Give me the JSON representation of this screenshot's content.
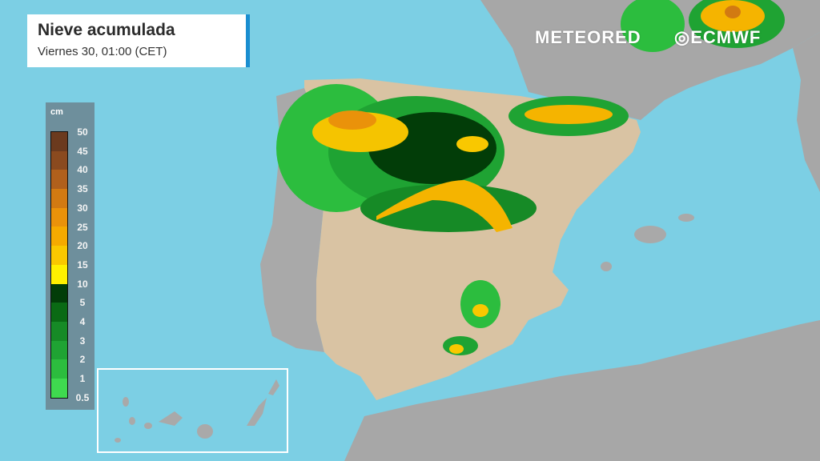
{
  "header": {
    "title": "Nieve acumulada",
    "subtitle": "Viernes 30, 01:00 (CET)"
  },
  "branding": {
    "meteored": "METEORED",
    "ecmwf": "ECMWF"
  },
  "legend": {
    "unit": "cm",
    "labels": [
      "50",
      "45",
      "40",
      "35",
      "30",
      "25",
      "20",
      "15",
      "10",
      "5",
      "4",
      "3",
      "2",
      "1",
      "0.5"
    ],
    "colors": [
      "#6b3a1e",
      "#8a4a1f",
      "#b0601c",
      "#d27a12",
      "#ea920a",
      "#f5aa00",
      "#f9c800",
      "#fff000",
      "#023d08",
      "#0a6a14",
      "#168a26",
      "#1fa333",
      "#2cbd3e",
      "#3fd94f"
    ]
  },
  "colors": {
    "sea": "#7ccfe4",
    "land": "#a9a9a9",
    "spain_land": "#d9c3a3",
    "accent": "#1a8ed0"
  }
}
